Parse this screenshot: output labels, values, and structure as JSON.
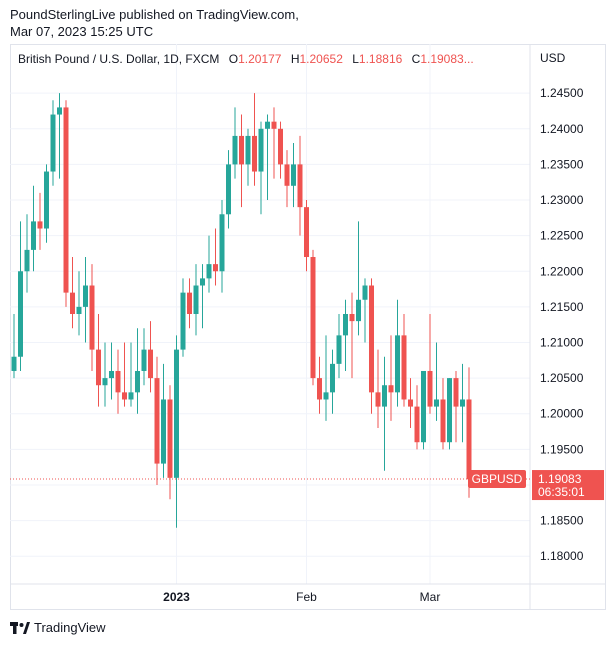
{
  "publisher": {
    "line1": "PoundSterlingLive published on TradingView.com,",
    "line2": "Mar 07, 2023 15:25 UTC"
  },
  "legend": {
    "title": "British Pound / U.S. Dollar, 1D, FXCM",
    "o_label": "O",
    "o_value": "1.20177",
    "h_label": "H",
    "h_value": "1.20652",
    "l_label": "L",
    "l_value": "1.18816",
    "c_label": "C",
    "c_value": "1.19083",
    "ellipsis": "..."
  },
  "currency": "USD",
  "brand": {
    "name": "TradingView",
    "icon": "tradingview-logo-icon"
  },
  "price_label": {
    "symbol": "GBPUSD",
    "price": "1.19083",
    "countdown": "06:35:01"
  },
  "colors": {
    "up": "#26a69a",
    "down": "#ef5350",
    "grid": "#f0f3fa",
    "text": "#131722"
  },
  "chart_data": {
    "type": "candlestick",
    "symbol": "GBPUSD",
    "interval": "1D",
    "y_range": [
      1.1775,
      1.2505
    ],
    "y_ticks": [
      "1.24500",
      "1.24000",
      "1.23500",
      "1.23000",
      "1.22500",
      "1.22000",
      "1.21500",
      "1.21000",
      "1.20500",
      "1.20000",
      "1.19500",
      "1.19000",
      "1.18500",
      "1.18000"
    ],
    "x_ticks": [
      {
        "label": "2023",
        "index": 25,
        "bold": true
      },
      {
        "label": "Feb",
        "index": 45,
        "bold": false
      },
      {
        "label": "Mar",
        "index": 64,
        "bold": false
      }
    ],
    "last_price": 1.19083,
    "candles": [
      {
        "o": 1.206,
        "h": 1.214,
        "l": 1.205,
        "c": 1.208
      },
      {
        "o": 1.208,
        "h": 1.227,
        "l": 1.206,
        "c": 1.22
      },
      {
        "o": 1.22,
        "h": 1.228,
        "l": 1.217,
        "c": 1.223
      },
      {
        "o": 1.223,
        "h": 1.232,
        "l": 1.22,
        "c": 1.227
      },
      {
        "o": 1.227,
        "h": 1.231,
        "l": 1.223,
        "c": 1.226
      },
      {
        "o": 1.226,
        "h": 1.235,
        "l": 1.224,
        "c": 1.234
      },
      {
        "o": 1.234,
        "h": 1.244,
        "l": 1.232,
        "c": 1.242
      },
      {
        "o": 1.242,
        "h": 1.245,
        "l": 1.233,
        "c": 1.243
      },
      {
        "o": 1.243,
        "h": 1.244,
        "l": 1.215,
        "c": 1.217
      },
      {
        "o": 1.217,
        "h": 1.222,
        "l": 1.212,
        "c": 1.214
      },
      {
        "o": 1.214,
        "h": 1.22,
        "l": 1.211,
        "c": 1.215
      },
      {
        "o": 1.215,
        "h": 1.222,
        "l": 1.21,
        "c": 1.218
      },
      {
        "o": 1.218,
        "h": 1.221,
        "l": 1.206,
        "c": 1.209
      },
      {
        "o": 1.209,
        "h": 1.214,
        "l": 1.201,
        "c": 1.204
      },
      {
        "o": 1.204,
        "h": 1.21,
        "l": 1.201,
        "c": 1.205
      },
      {
        "o": 1.205,
        "h": 1.21,
        "l": 1.202,
        "c": 1.206
      },
      {
        "o": 1.206,
        "h": 1.209,
        "l": 1.2,
        "c": 1.203
      },
      {
        "o": 1.203,
        "h": 1.21,
        "l": 1.201,
        "c": 1.202
      },
      {
        "o": 1.202,
        "h": 1.21,
        "l": 1.201,
        "c": 1.203
      },
      {
        "o": 1.203,
        "h": 1.212,
        "l": 1.2,
        "c": 1.206
      },
      {
        "o": 1.206,
        "h": 1.212,
        "l": 1.204,
        "c": 1.209
      },
      {
        "o": 1.209,
        "h": 1.213,
        "l": 1.203,
        "c": 1.205
      },
      {
        "o": 1.205,
        "h": 1.208,
        "l": 1.19,
        "c": 1.193
      },
      {
        "o": 1.193,
        "h": 1.207,
        "l": 1.191,
        "c": 1.202
      },
      {
        "o": 1.202,
        "h": 1.204,
        "l": 1.188,
        "c": 1.191
      },
      {
        "o": 1.191,
        "h": 1.211,
        "l": 1.184,
        "c": 1.209
      },
      {
        "o": 1.209,
        "h": 1.219,
        "l": 1.208,
        "c": 1.217
      },
      {
        "o": 1.217,
        "h": 1.219,
        "l": 1.212,
        "c": 1.214
      },
      {
        "o": 1.214,
        "h": 1.221,
        "l": 1.211,
        "c": 1.218
      },
      {
        "o": 1.218,
        "h": 1.221,
        "l": 1.212,
        "c": 1.219
      },
      {
        "o": 1.219,
        "h": 1.225,
        "l": 1.217,
        "c": 1.221
      },
      {
        "o": 1.221,
        "h": 1.226,
        "l": 1.218,
        "c": 1.22
      },
      {
        "o": 1.22,
        "h": 1.23,
        "l": 1.217,
        "c": 1.228
      },
      {
        "o": 1.228,
        "h": 1.237,
        "l": 1.226,
        "c": 1.235
      },
      {
        "o": 1.235,
        "h": 1.243,
        "l": 1.233,
        "c": 1.239
      },
      {
        "o": 1.239,
        "h": 1.242,
        "l": 1.229,
        "c": 1.235
      },
      {
        "o": 1.235,
        "h": 1.24,
        "l": 1.232,
        "c": 1.239
      },
      {
        "o": 1.239,
        "h": 1.245,
        "l": 1.232,
        "c": 1.234
      },
      {
        "o": 1.234,
        "h": 1.241,
        "l": 1.228,
        "c": 1.24
      },
      {
        "o": 1.24,
        "h": 1.242,
        "l": 1.23,
        "c": 1.241
      },
      {
        "o": 1.241,
        "h": 1.243,
        "l": 1.233,
        "c": 1.24
      },
      {
        "o": 1.24,
        "h": 1.241,
        "l": 1.233,
        "c": 1.235
      },
      {
        "o": 1.235,
        "h": 1.237,
        "l": 1.229,
        "c": 1.232
      },
      {
        "o": 1.232,
        "h": 1.238,
        "l": 1.229,
        "c": 1.235
      },
      {
        "o": 1.235,
        "h": 1.239,
        "l": 1.225,
        "c": 1.229
      },
      {
        "o": 1.229,
        "h": 1.23,
        "l": 1.22,
        "c": 1.222
      },
      {
        "o": 1.222,
        "h": 1.223,
        "l": 1.204,
        "c": 1.205
      },
      {
        "o": 1.205,
        "h": 1.208,
        "l": 1.2,
        "c": 1.202
      },
      {
        "o": 1.202,
        "h": 1.211,
        "l": 1.199,
        "c": 1.203
      },
      {
        "o": 1.203,
        "h": 1.209,
        "l": 1.2,
        "c": 1.207
      },
      {
        "o": 1.207,
        "h": 1.214,
        "l": 1.205,
        "c": 1.211
      },
      {
        "o": 1.211,
        "h": 1.216,
        "l": 1.206,
        "c": 1.214
      },
      {
        "o": 1.214,
        "h": 1.217,
        "l": 1.205,
        "c": 1.213
      },
      {
        "o": 1.213,
        "h": 1.227,
        "l": 1.211,
        "c": 1.216
      },
      {
        "o": 1.216,
        "h": 1.219,
        "l": 1.21,
        "c": 1.218
      },
      {
        "o": 1.218,
        "h": 1.219,
        "l": 1.2,
        "c": 1.203
      },
      {
        "o": 1.203,
        "h": 1.209,
        "l": 1.198,
        "c": 1.201
      },
      {
        "o": 1.201,
        "h": 1.208,
        "l": 1.192,
        "c": 1.204
      },
      {
        "o": 1.204,
        "h": 1.211,
        "l": 1.199,
        "c": 1.203
      },
      {
        "o": 1.203,
        "h": 1.216,
        "l": 1.201,
        "c": 1.211
      },
      {
        "o": 1.211,
        "h": 1.214,
        "l": 1.201,
        "c": 1.202
      },
      {
        "o": 1.202,
        "h": 1.205,
        "l": 1.198,
        "c": 1.201
      },
      {
        "o": 1.201,
        "h": 1.204,
        "l": 1.195,
        "c": 1.196
      },
      {
        "o": 1.196,
        "h": 1.206,
        "l": 1.195,
        "c": 1.206
      },
      {
        "o": 1.206,
        "h": 1.214,
        "l": 1.2,
        "c": 1.201
      },
      {
        "o": 1.201,
        "h": 1.21,
        "l": 1.199,
        "c": 1.202
      },
      {
        "o": 1.202,
        "h": 1.205,
        "l": 1.195,
        "c": 1.196
      },
      {
        "o": 1.196,
        "h": 1.205,
        "l": 1.195,
        "c": 1.205
      },
      {
        "o": 1.205,
        "h": 1.206,
        "l": 1.196,
        "c": 1.201
      },
      {
        "o": 1.201,
        "h": 1.207,
        "l": 1.196,
        "c": 1.202
      },
      {
        "o": 1.202,
        "h": 1.2065,
        "l": 1.1882,
        "c": 1.1908
      }
    ]
  }
}
